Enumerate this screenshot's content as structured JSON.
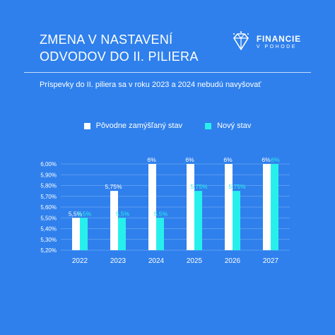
{
  "header": {
    "title_line1": "ZMENA V NASTAVENÍ",
    "title_line2": "ODVODOV DO II. PILIERA",
    "subtitle": "Príspevky do II. piliera sa v roku 2023 a 2024 nebudú navyšovať"
  },
  "logo": {
    "name_line1": "FINANCIE",
    "name_line2": "V POHODE",
    "icon": "diamond-icon"
  },
  "colors": {
    "background": "#2f80ec",
    "original": "#ffffff",
    "new": "#27f0ec",
    "grid": "#6aa6f3"
  },
  "chart_data": {
    "type": "bar",
    "categories": [
      "2022",
      "2023",
      "2024",
      "2025",
      "2026",
      "2027"
    ],
    "series": [
      {
        "name": "Pôvodne zamýšľaný stav",
        "values": [
          5.5,
          5.75,
          6,
          6,
          6,
          6
        ],
        "labels": [
          "5,5%",
          "5,75%",
          "6%",
          "6%",
          "6%",
          "6%"
        ],
        "color": "#ffffff"
      },
      {
        "name": "Nový stav",
        "values": [
          5.5,
          5.5,
          5.5,
          5.75,
          5.75,
          6
        ],
        "labels": [
          "5,5%",
          "5,5%",
          "5,5%",
          "5,75%",
          "5,75%",
          "6%"
        ],
        "color": "#27f0ec"
      }
    ],
    "ylim": [
      5.2,
      6.0
    ],
    "yticks": [
      {
        "value": 5.2,
        "label": "5,20%"
      },
      {
        "value": 5.3,
        "label": "5,30%"
      },
      {
        "value": 5.4,
        "label": "5,40%"
      },
      {
        "value": 5.5,
        "label": "5,50%"
      },
      {
        "value": 5.6,
        "label": "5,60%"
      },
      {
        "value": 5.7,
        "label": "5,70%"
      },
      {
        "value": 5.8,
        "label": "5,80%"
      },
      {
        "value": 5.9,
        "label": "5,90%"
      },
      {
        "value": 6.0,
        "label": "6,00%"
      }
    ],
    "grid": true,
    "legend": "top-center"
  }
}
